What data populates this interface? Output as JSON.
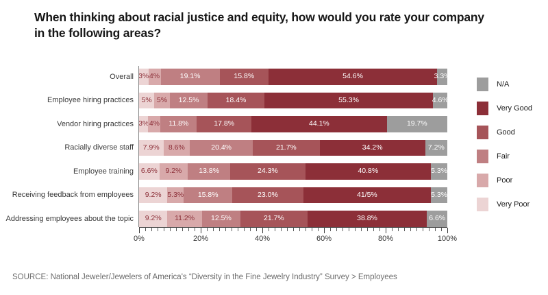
{
  "title_lines": [
    "When thinking about racial justice and equity, how would you rate your company",
    "in the following areas?"
  ],
  "source": "SOURCE: National Jeweler/Jewelers of America's “Diversity in the Fine Jewelry Industry” Survey > Employees",
  "colors": {
    "very_poor": "#ecd4d4",
    "poor": "#d8a9aa",
    "fair": "#bf7f82",
    "good": "#a65459",
    "very_good": "#8c2f38",
    "na": "#9d9d9d",
    "value_text_dark": "#8c2f38",
    "value_text_light": "#ffffff"
  },
  "chart_data": {
    "type": "bar",
    "subtype": "horizontal-stacked-100percent",
    "title": "When thinking about racial justice and equity, how would you rate your company in the following areas?",
    "categories": [
      "Overall",
      "Employee hiring practices",
      "Vendor hiring practices",
      "Racially diverse staff",
      "Employee training",
      "Receiving feedback from employees",
      "Addressing employees about the topic"
    ],
    "series": [
      {
        "name": "Very Poor",
        "color": "#ecd4d4",
        "label_color": "#8c2f38",
        "values": [
          3,
          5,
          3,
          7.9,
          6.6,
          9.2,
          9.2
        ],
        "labels": [
          "3%",
          "5%",
          "3%",
          "7.9%",
          "6.6%",
          "9.2%",
          "9.2%"
        ]
      },
      {
        "name": "Poor",
        "color": "#d8a9aa",
        "label_color": "#8c2f38",
        "values": [
          4,
          5,
          4,
          8.6,
          9.2,
          5.3,
          11.2
        ],
        "labels": [
          "4%",
          "5%",
          "4%",
          "8.6%",
          "9.2%",
          "5.3%",
          "11.2%"
        ]
      },
      {
        "name": "Fair",
        "color": "#bf7f82",
        "label_color": "#ffffff",
        "values": [
          19.1,
          12.5,
          11.8,
          20.4,
          13.8,
          15.8,
          12.5
        ],
        "labels": [
          "19.1%",
          "12.5%",
          "11.8%",
          "20.4%",
          "13.8%",
          "15.8%",
          "12.5%"
        ]
      },
      {
        "name": "Good",
        "color": "#a65459",
        "label_color": "#ffffff",
        "values": [
          15.8,
          18.4,
          17.8,
          21.7,
          24.3,
          23.0,
          21.7
        ],
        "labels": [
          "15.8%",
          "18.4%",
          "17.8%",
          "21.7%",
          "24.3%",
          "23.0%",
          "21.7%"
        ]
      },
      {
        "name": "Very Good",
        "color": "#8c2f38",
        "label_color": "#ffffff",
        "values": [
          54.6,
          55.3,
          44.1,
          34.2,
          40.8,
          41.5,
          38.8
        ],
        "labels": [
          "54.6%",
          "55.3%",
          "44.1%",
          "34.2%",
          "40.8%",
          "41/5%",
          "38.8%"
        ]
      },
      {
        "name": "N/A",
        "color": "#9d9d9d",
        "label_color": "#ffffff",
        "values": [
          3.3,
          4.6,
          19.7,
          7.2,
          5.3,
          5.3,
          6.6
        ],
        "labels": [
          "3.3%",
          "4.6%",
          "19.7%",
          "7.2%",
          "5.3%",
          "5.3%",
          "6.6%"
        ]
      }
    ],
    "legend": {
      "position": "right",
      "items": [
        {
          "label": "N/A",
          "color": "#9d9d9d"
        },
        {
          "label": "Very Good",
          "color": "#8c2f38"
        },
        {
          "label": "Good",
          "color": "#a65459"
        },
        {
          "label": "Fair",
          "color": "#bf7f82"
        },
        {
          "label": "Poor",
          "color": "#d8a9aa"
        },
        {
          "label": "Very Poor",
          "color": "#ecd4d4"
        }
      ]
    },
    "x_axis": {
      "min": 0,
      "max": 100,
      "major_step": 20,
      "minor_step": 2,
      "tick_labels": [
        "0%",
        "20%",
        "40%",
        "60%",
        "80%",
        "100%"
      ]
    }
  }
}
